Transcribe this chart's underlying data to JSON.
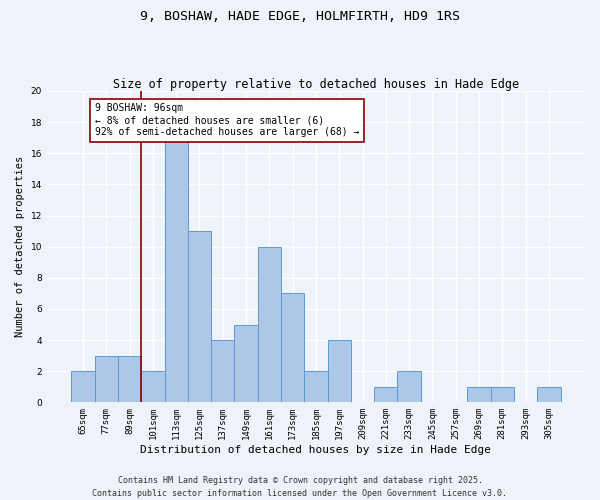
{
  "title1": "9, BOSHAW, HADE EDGE, HOLMFIRTH, HD9 1RS",
  "title2": "Size of property relative to detached houses in Hade Edge",
  "xlabel": "Distribution of detached houses by size in Hade Edge",
  "ylabel": "Number of detached properties",
  "categories": [
    "65sqm",
    "77sqm",
    "89sqm",
    "101sqm",
    "113sqm",
    "125sqm",
    "137sqm",
    "149sqm",
    "161sqm",
    "173sqm",
    "185sqm",
    "197sqm",
    "209sqm",
    "221sqm",
    "233sqm",
    "245sqm",
    "257sqm",
    "269sqm",
    "281sqm",
    "293sqm",
    "305sqm"
  ],
  "values": [
    2,
    3,
    3,
    2,
    17,
    11,
    4,
    5,
    10,
    7,
    2,
    4,
    0,
    1,
    2,
    0,
    0,
    1,
    1,
    0,
    1
  ],
  "bar_color": "#aec6e8",
  "bar_edge_color": "#5b9bd5",
  "vline_x": 2.5,
  "vline_color": "#8B0000",
  "annotation_text": "9 BOSHAW: 96sqm\n← 8% of detached houses are smaller (6)\n92% of semi-detached houses are larger (68) →",
  "annotation_box_color": "#ffffff",
  "annotation_box_edge": "#8B0000",
  "ylim": [
    0,
    20
  ],
  "yticks": [
    0,
    2,
    4,
    6,
    8,
    10,
    12,
    14,
    16,
    18,
    20
  ],
  "bg_color": "#eef2f9",
  "grid_color": "#ffffff",
  "footer1": "Contains HM Land Registry data © Crown copyright and database right 2025.",
  "footer2": "Contains public sector information licensed under the Open Government Licence v3.0.",
  "title1_fontsize": 9.5,
  "title2_fontsize": 8.5,
  "xlabel_fontsize": 8,
  "ylabel_fontsize": 7.5,
  "tick_fontsize": 6.5,
  "annotation_fontsize": 7,
  "footer_fontsize": 6
}
